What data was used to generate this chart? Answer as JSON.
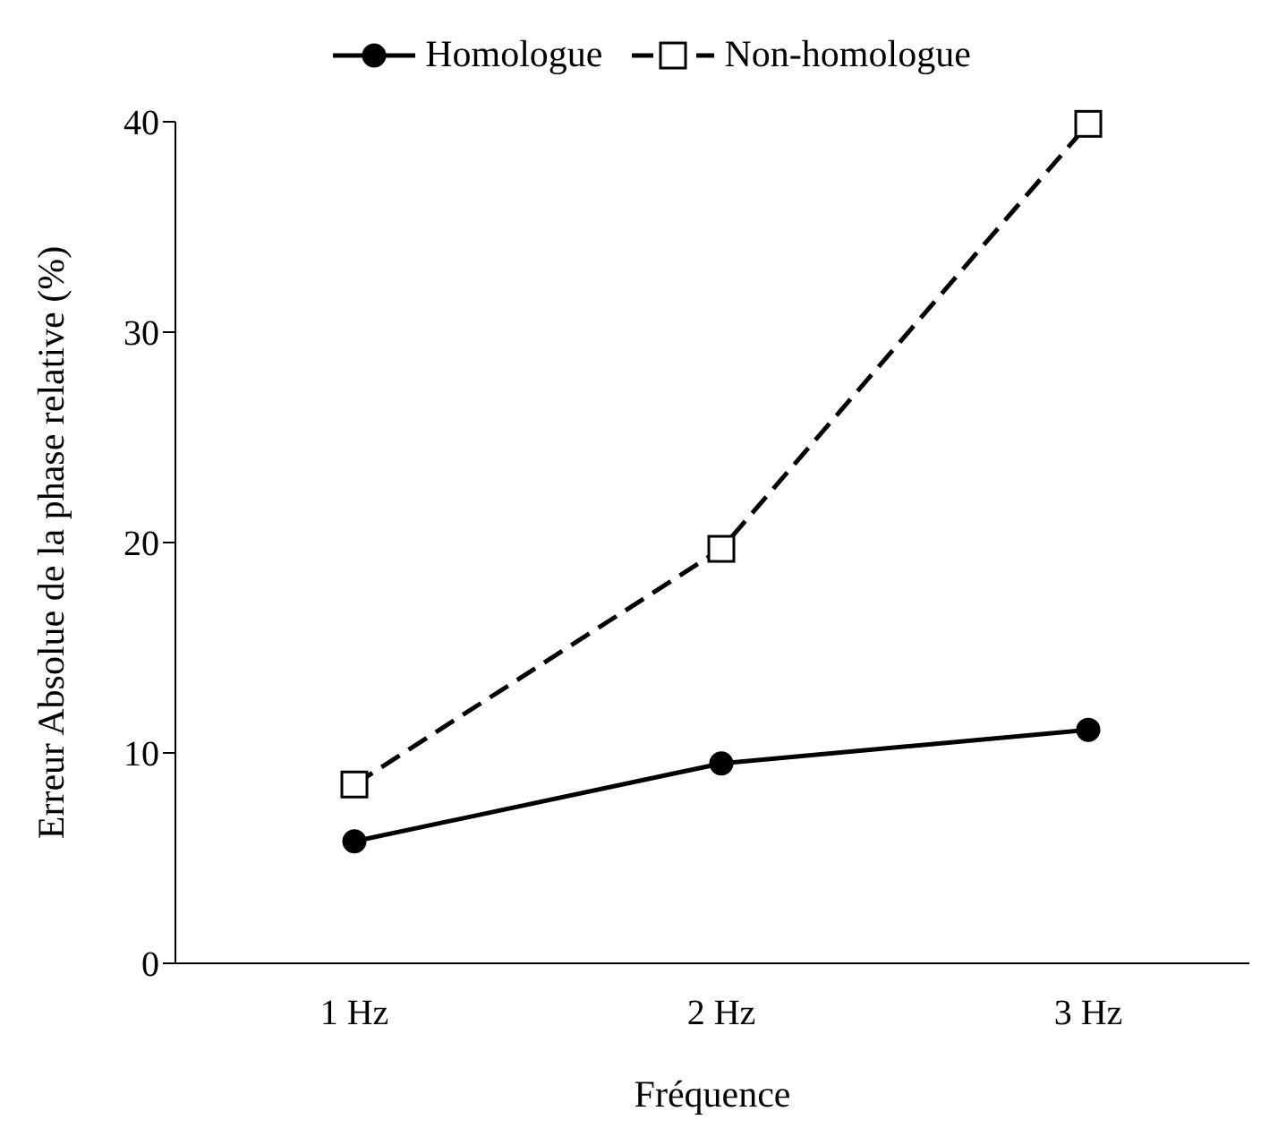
{
  "chart_data": {
    "type": "line",
    "xlabel": "Fréquence",
    "ylabel": "Erreur Absolue de la phase relative (%)",
    "categories": [
      "1 Hz",
      "2 Hz",
      "3 Hz"
    ],
    "series": [
      {
        "name": "Homologue",
        "color": "#000000",
        "values": [
          5.8,
          9.5,
          11.1
        ],
        "marker": "circle",
        "line_style": "solid"
      },
      {
        "name": "Non-homologue",
        "color": "#000000",
        "values": [
          8.5,
          19.7,
          39.9
        ],
        "marker": "square",
        "line_style": "dashed"
      }
    ],
    "ylim": [
      0,
      40
    ],
    "yticks": [
      0,
      10,
      20,
      30,
      40
    ],
    "grid": false,
    "legend": "top"
  }
}
